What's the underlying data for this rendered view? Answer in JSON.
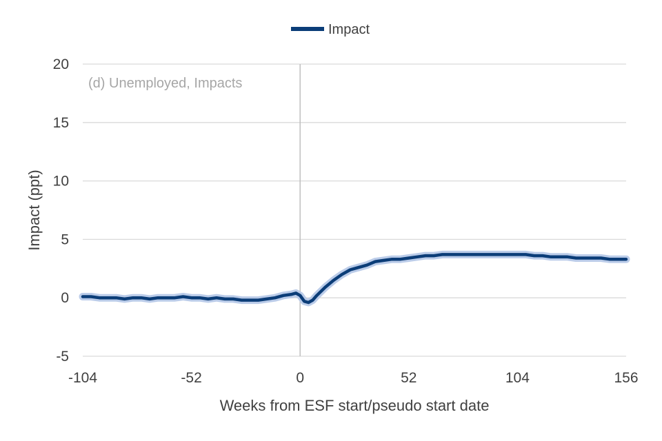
{
  "chart_data": {
    "type": "line",
    "panel_label": "(d) Unemployed, Impacts",
    "xlabel": "Weeks from ESF start/pseudo start date",
    "ylabel": "Impact (ppt)",
    "xlim": [
      -104,
      156
    ],
    "ylim": [
      -5,
      20
    ],
    "x_ticks": [
      -104,
      -52,
      0,
      52,
      104,
      156
    ],
    "y_ticks": [
      -5,
      0,
      5,
      10,
      15,
      20
    ],
    "grid": "horizontal",
    "legend_position": "top-center",
    "series": [
      {
        "name": "Impact",
        "color": "#0b3d78",
        "band_color": "#b4c7e7",
        "x": [
          -104,
          -100,
          -96,
          -92,
          -88,
          -84,
          -80,
          -76,
          -72,
          -68,
          -64,
          -60,
          -56,
          -52,
          -48,
          -44,
          -40,
          -36,
          -32,
          -28,
          -24,
          -20,
          -16,
          -12,
          -8,
          -4,
          -2,
          0,
          2,
          4,
          6,
          8,
          12,
          16,
          20,
          24,
          28,
          32,
          36,
          40,
          44,
          48,
          52,
          56,
          60,
          64,
          68,
          72,
          76,
          80,
          84,
          88,
          92,
          96,
          100,
          104,
          108,
          112,
          116,
          120,
          124,
          128,
          132,
          136,
          140,
          144,
          148,
          152,
          156
        ],
        "values": [
          0.1,
          0.1,
          0.0,
          0.0,
          0.0,
          -0.1,
          0.0,
          0.0,
          -0.1,
          0.0,
          0.0,
          0.0,
          0.1,
          0.0,
          0.0,
          -0.1,
          0.0,
          -0.1,
          -0.1,
          -0.2,
          -0.2,
          -0.2,
          -0.1,
          0.0,
          0.2,
          0.3,
          0.4,
          0.2,
          -0.3,
          -0.4,
          -0.2,
          0.2,
          0.9,
          1.5,
          2.0,
          2.4,
          2.6,
          2.8,
          3.1,
          3.2,
          3.3,
          3.3,
          3.4,
          3.5,
          3.6,
          3.6,
          3.7,
          3.7,
          3.7,
          3.7,
          3.7,
          3.7,
          3.7,
          3.7,
          3.7,
          3.7,
          3.7,
          3.6,
          3.6,
          3.5,
          3.5,
          3.5,
          3.4,
          3.4,
          3.4,
          3.4,
          3.3,
          3.3,
          3.3
        ]
      }
    ]
  }
}
